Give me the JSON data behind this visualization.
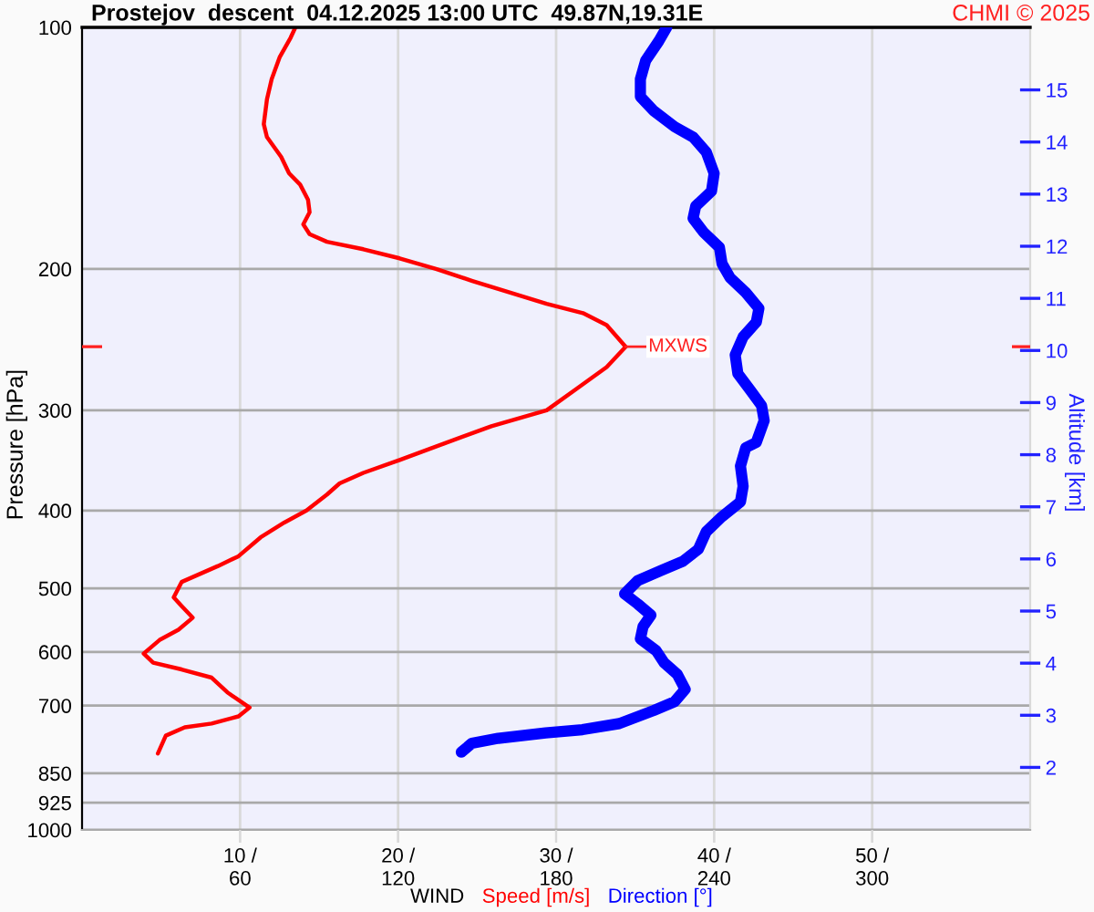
{
  "chart_data": {
    "type": "line",
    "title": "Prostejov  descent  04.12.2025 13:00 UTC  49.87N,19.31E",
    "xlabel": "WIND",
    "ylabel": "Pressure [hPa]",
    "y2label": "Altitude [km]",
    "annotations": [
      "CHMI © 2025",
      {
        "text": "MXWS",
        "x": 34.4,
        "y": 250
      }
    ],
    "ref_lines": [
      {
        "axis": "y",
        "value": 250,
        "color": "#ff2020"
      }
    ],
    "log": "y",
    "grid": true,
    "xlim": [
      0,
      60
    ],
    "xticks": [
      {
        "value": 10,
        "label": "10 /"
      },
      {
        "value": 20,
        "label": "20 /"
      },
      {
        "value": 30,
        "label": "30 /"
      },
      {
        "value": 40,
        "label": "40 /"
      },
      {
        "value": 50,
        "label": "50 /"
      }
    ],
    "x2lim": [
      0,
      360
    ],
    "x2ticks": [
      60,
      120,
      180,
      240,
      300
    ],
    "ylim": [
      1000,
      100
    ],
    "yticks": [
      100,
      200,
      300,
      400,
      500,
      600,
      700,
      850,
      925,
      1000
    ],
    "y2lim": [
      0.8,
      16.2
    ],
    "y2ticks": [
      2,
      3,
      4,
      5,
      6,
      7,
      8,
      9,
      10,
      11,
      12,
      13,
      14,
      15
    ],
    "series": [
      {
        "name": "Speed [m/s]",
        "color": "#ff0000",
        "x": [
          13.5,
          13.2,
          12.5,
          12.0,
          11.7,
          11.5,
          11.7,
          12.6,
          13.1,
          13.8,
          14.3,
          14.4,
          14.0,
          14.4,
          15.5,
          17.8,
          20.1,
          22.4,
          24.7,
          27.1,
          29.4,
          31.7,
          33.2,
          34.4,
          33.2,
          31.3,
          29.4,
          25.9,
          22.2,
          20.1,
          17.8,
          16.3,
          15.5,
          14.2,
          12.8,
          11.3,
          9.9,
          8.6,
          6.3,
          5.8,
          6.3,
          7.0,
          6.1,
          4.9,
          3.9,
          4.5,
          6.3,
          8.2,
          9.2,
          10.6,
          9.9,
          8.2,
          6.5,
          5.3,
          4.8
        ],
        "values": [
          100,
          103,
          109,
          116,
          123,
          132,
          137,
          145,
          152,
          157,
          164,
          170,
          176,
          181,
          185,
          189,
          194,
          200,
          207,
          214,
          221,
          227,
          235,
          250,
          265,
          282,
          300,
          314,
          334,
          346,
          359,
          370,
          382,
          400,
          414,
          432,
          456,
          469,
          491,
          513,
          526,
          544,
          563,
          580,
          603,
          619,
          631,
          646,
          674,
          704,
          722,
          737,
          745,
          763,
          803
        ]
      },
      {
        "name": "Direction [°]",
        "color": "#0000ff",
        "axis": "x2",
        "x": [
          222,
          219,
          214,
          212,
          212,
          217,
          225,
          232,
          237,
          240,
          239,
          233,
          232,
          236,
          242,
          243,
          246,
          252,
          257,
          256,
          251,
          248,
          249,
          254,
          258,
          259,
          256,
          252,
          250,
          251,
          250,
          243,
          237,
          234,
          228,
          220,
          211,
          206,
          211,
          216,
          213,
          212,
          218,
          221,
          226,
          229,
          225,
          217,
          204,
          190,
          176,
          158,
          148,
          144
        ],
        "values": [
          100,
          104,
          110,
          116,
          122,
          127,
          133,
          137,
          143,
          152,
          160,
          167,
          173,
          180,
          188,
          197,
          205,
          214,
          224,
          233,
          243,
          256,
          270,
          284,
          296,
          309,
          329,
          334,
          352,
          373,
          390,
          407,
          425,
          447,
          463,
          475,
          489,
          508,
          523,
          540,
          558,
          578,
          598,
          619,
          640,
          668,
          692,
          710,
          737,
          750,
          757,
          769,
          780,
          800
        ]
      }
    ]
  }
}
